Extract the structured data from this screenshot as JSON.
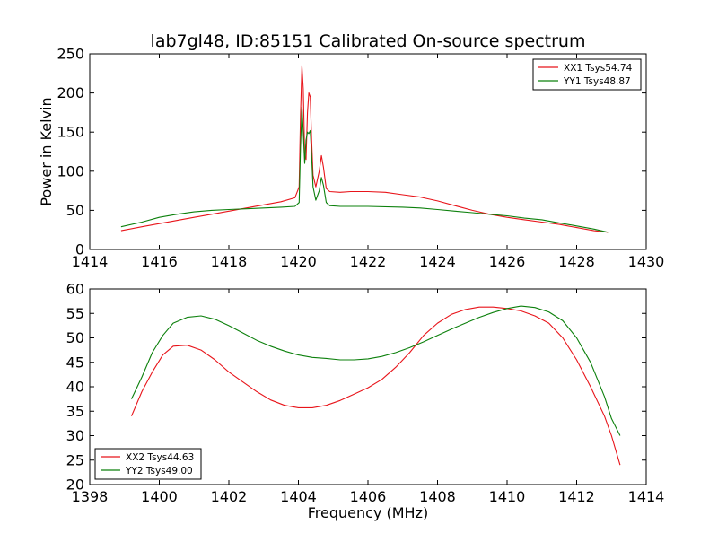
{
  "colors": {
    "red": "#e8141a",
    "green": "#0c800c"
  },
  "chart_data": [
    {
      "type": "line",
      "title": "lab7gl48, ID:85151 Calibrated On-source spectrum",
      "xlabel": "",
      "ylabel": "Power in Kelvin",
      "xlim": [
        1414,
        1430
      ],
      "ylim": [
        0,
        250
      ],
      "xticks": [
        "1414",
        "1416",
        "1418",
        "1420",
        "1422",
        "1424",
        "1426",
        "1428",
        "1430"
      ],
      "yticks": [
        "0",
        "50",
        "100",
        "150",
        "200",
        "250"
      ],
      "legend_position": "top-right",
      "series": [
        {
          "name": "XX1 Tsys54.74",
          "color": "#e8141a",
          "points": [
            [
              1414.9,
              24
            ],
            [
              1415.5,
              29
            ],
            [
              1416.0,
              33
            ],
            [
              1416.5,
              37
            ],
            [
              1417.0,
              41
            ],
            [
              1417.5,
              45
            ],
            [
              1418.0,
              49
            ],
            [
              1418.5,
              53
            ],
            [
              1419.0,
              57
            ],
            [
              1419.5,
              61
            ],
            [
              1419.9,
              66
            ],
            [
              1420.02,
              80
            ],
            [
              1420.06,
              170
            ],
            [
              1420.1,
              235
            ],
            [
              1420.14,
              205
            ],
            [
              1420.18,
              120
            ],
            [
              1420.22,
              115
            ],
            [
              1420.26,
              175
            ],
            [
              1420.3,
              200
            ],
            [
              1420.34,
              195
            ],
            [
              1420.38,
              140
            ],
            [
              1420.42,
              95
            ],
            [
              1420.5,
              80
            ],
            [
              1420.6,
              100
            ],
            [
              1420.66,
              120
            ],
            [
              1420.72,
              105
            ],
            [
              1420.8,
              78
            ],
            [
              1420.9,
              74
            ],
            [
              1421.2,
              73
            ],
            [
              1421.5,
              74
            ],
            [
              1422.0,
              74
            ],
            [
              1422.5,
              73
            ],
            [
              1423.0,
              70
            ],
            [
              1423.5,
              67
            ],
            [
              1424.0,
              62
            ],
            [
              1424.5,
              56
            ],
            [
              1425.0,
              50
            ],
            [
              1425.5,
              45
            ],
            [
              1426.0,
              41
            ],
            [
              1426.5,
              38
            ],
            [
              1427.0,
              35
            ],
            [
              1427.5,
              32
            ],
            [
              1428.0,
              28
            ],
            [
              1428.5,
              24
            ],
            [
              1428.9,
              22
            ]
          ]
        },
        {
          "name": "YY1 Tsys48.87",
          "color": "#0c800c",
          "points": [
            [
              1414.9,
              29
            ],
            [
              1415.5,
              35
            ],
            [
              1416.0,
              41
            ],
            [
              1416.5,
              45
            ],
            [
              1417.0,
              48
            ],
            [
              1417.5,
              50
            ],
            [
              1418.0,
              51
            ],
            [
              1418.5,
              52
            ],
            [
              1419.0,
              53
            ],
            [
              1419.5,
              54
            ],
            [
              1419.9,
              55
            ],
            [
              1420.02,
              60
            ],
            [
              1420.06,
              130
            ],
            [
              1420.1,
              182
            ],
            [
              1420.14,
              150
            ],
            [
              1420.18,
              110
            ],
            [
              1420.22,
              140
            ],
            [
              1420.26,
              150
            ],
            [
              1420.3,
              148
            ],
            [
              1420.34,
              152
            ],
            [
              1420.38,
              120
            ],
            [
              1420.42,
              80
            ],
            [
              1420.5,
              63
            ],
            [
              1420.6,
              75
            ],
            [
              1420.66,
              92
            ],
            [
              1420.72,
              82
            ],
            [
              1420.8,
              60
            ],
            [
              1420.9,
              56
            ],
            [
              1421.2,
              55
            ],
            [
              1422.0,
              55
            ],
            [
              1423.0,
              54
            ],
            [
              1423.5,
              53
            ],
            [
              1424.0,
              51
            ],
            [
              1424.5,
              49
            ],
            [
              1425.0,
              47
            ],
            [
              1425.5,
              45
            ],
            [
              1426.0,
              43
            ],
            [
              1426.5,
              40
            ],
            [
              1427.0,
              38
            ],
            [
              1427.5,
              34
            ],
            [
              1428.0,
              30
            ],
            [
              1428.5,
              26
            ],
            [
              1428.9,
              22
            ]
          ]
        }
      ]
    },
    {
      "type": "line",
      "title": "",
      "xlabel": "Frequency (MHz)",
      "ylabel": "",
      "xlim": [
        1398,
        1414
      ],
      "ylim": [
        20,
        60
      ],
      "xticks": [
        "1398",
        "1400",
        "1402",
        "1404",
        "1406",
        "1408",
        "1410",
        "1412",
        "1414"
      ],
      "yticks": [
        "20",
        "25",
        "30",
        "35",
        "40",
        "45",
        "50",
        "55",
        "60"
      ],
      "legend_position": "bottom-left",
      "series": [
        {
          "name": "XX2 Tsys44.63",
          "color": "#e8141a",
          "points": [
            [
              1399.2,
              34
            ],
            [
              1399.5,
              39
            ],
            [
              1399.8,
              43
            ],
            [
              1400.1,
              46.5
            ],
            [
              1400.4,
              48.3
            ],
            [
              1400.8,
              48.5
            ],
            [
              1401.2,
              47.5
            ],
            [
              1401.6,
              45.5
            ],
            [
              1402.0,
              43
            ],
            [
              1402.4,
              41
            ],
            [
              1402.8,
              39
            ],
            [
              1403.2,
              37.3
            ],
            [
              1403.6,
              36.2
            ],
            [
              1404.0,
              35.7
            ],
            [
              1404.4,
              35.7
            ],
            [
              1404.8,
              36.2
            ],
            [
              1405.2,
              37.2
            ],
            [
              1405.6,
              38.5
            ],
            [
              1406.0,
              39.8
            ],
            [
              1406.4,
              41.5
            ],
            [
              1406.8,
              44
            ],
            [
              1407.2,
              47
            ],
            [
              1407.6,
              50.5
            ],
            [
              1408.0,
              53
            ],
            [
              1408.4,
              54.8
            ],
            [
              1408.8,
              55.8
            ],
            [
              1409.2,
              56.3
            ],
            [
              1409.6,
              56.3
            ],
            [
              1410.0,
              56
            ],
            [
              1410.4,
              55.5
            ],
            [
              1410.8,
              54.5
            ],
            [
              1411.2,
              53
            ],
            [
              1411.6,
              50
            ],
            [
              1412.0,
              45.5
            ],
            [
              1412.4,
              40
            ],
            [
              1412.8,
              34
            ],
            [
              1413.0,
              30
            ],
            [
              1413.25,
              24
            ]
          ]
        },
        {
          "name": "YY2 Tsys49.00",
          "color": "#0c800c",
          "points": [
            [
              1399.2,
              37.5
            ],
            [
              1399.5,
              42
            ],
            [
              1399.8,
              47
            ],
            [
              1400.1,
              50.5
            ],
            [
              1400.4,
              53
            ],
            [
              1400.8,
              54.2
            ],
            [
              1401.2,
              54.5
            ],
            [
              1401.6,
              53.8
            ],
            [
              1402.0,
              52.5
            ],
            [
              1402.4,
              51
            ],
            [
              1402.8,
              49.5
            ],
            [
              1403.2,
              48.3
            ],
            [
              1403.6,
              47.3
            ],
            [
              1404.0,
              46.5
            ],
            [
              1404.4,
              46
            ],
            [
              1404.8,
              45.8
            ],
            [
              1405.2,
              45.5
            ],
            [
              1405.6,
              45.5
            ],
            [
              1406.0,
              45.7
            ],
            [
              1406.4,
              46.2
            ],
            [
              1406.8,
              47
            ],
            [
              1407.2,
              48
            ],
            [
              1407.6,
              49.2
            ],
            [
              1408.0,
              50.5
            ],
            [
              1408.4,
              51.8
            ],
            [
              1408.8,
              53
            ],
            [
              1409.2,
              54.2
            ],
            [
              1409.6,
              55.2
            ],
            [
              1410.0,
              56
            ],
            [
              1410.4,
              56.5
            ],
            [
              1410.8,
              56.2
            ],
            [
              1411.2,
              55.3
            ],
            [
              1411.6,
              53.5
            ],
            [
              1412.0,
              50
            ],
            [
              1412.4,
              45
            ],
            [
              1412.8,
              38
            ],
            [
              1413.0,
              33.5
            ],
            [
              1413.25,
              30
            ]
          ]
        }
      ]
    }
  ]
}
